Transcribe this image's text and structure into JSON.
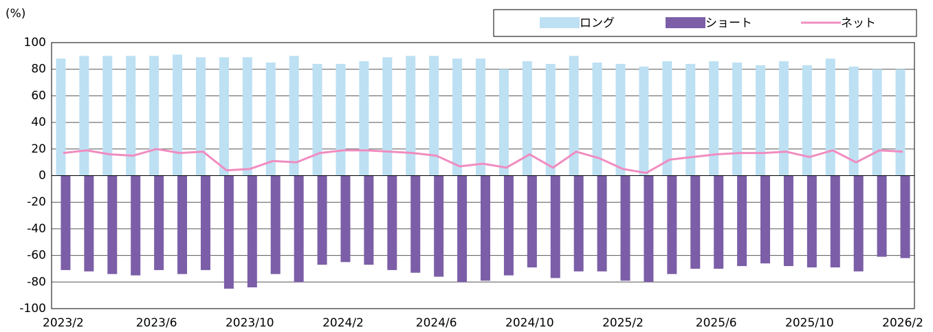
{
  "chart_data": {
    "type": "bar_line",
    "y_label": "(%)",
    "categories": [
      "2023/2",
      null,
      null,
      null,
      "2023/6",
      null,
      null,
      null,
      "2023/10",
      null,
      null,
      null,
      "2024/2",
      null,
      null,
      null,
      "2024/6",
      null,
      null,
      null,
      "2024/10",
      null,
      null,
      null,
      "2025/2",
      null,
      null,
      null,
      "2025/6",
      null,
      null,
      null,
      "2025/10",
      null,
      null,
      null,
      "2026/2"
    ],
    "series": [
      {
        "name": "ロング",
        "color": "#bde0f3",
        "kind": "bar",
        "values": [
          88,
          90,
          90,
          90,
          90,
          91,
          89,
          89,
          89,
          85,
          90,
          84,
          84,
          86,
          89,
          90,
          90,
          88,
          88,
          80,
          86,
          84,
          90,
          85,
          84,
          82,
          86,
          84,
          86,
          85,
          83,
          86,
          83,
          88,
          82,
          80,
          80
        ]
      },
      {
        "name": "ショート",
        "color": "#7b5ea7",
        "kind": "bar",
        "values": [
          -71,
          -72,
          -74,
          -75,
          -71,
          -74,
          -71,
          -85,
          -84,
          -74,
          -80,
          -67,
          -65,
          -67,
          -71,
          -73,
          -76,
          -80,
          -79,
          -75,
          -69,
          -77,
          -72,
          -72,
          -79,
          -80,
          -74,
          -70,
          -70,
          -68,
          -66,
          -68,
          -69,
          -69,
          -72,
          -61,
          -62
        ]
      },
      {
        "name": "ネット",
        "color": "#f08cc0",
        "kind": "line",
        "values": [
          17,
          19,
          16,
          15,
          20,
          17,
          18,
          4,
          5,
          11,
          10,
          17,
          19,
          19,
          18,
          17,
          15,
          7,
          9,
          6,
          16,
          6,
          18,
          13,
          5,
          2,
          12,
          14,
          16,
          17,
          17,
          18,
          14,
          19,
          10,
          19,
          18
        ]
      }
    ],
    "ylim": [
      -100,
      100
    ],
    "yticks": [
      -100,
      -80,
      -60,
      -40,
      -20,
      0,
      20,
      40,
      60,
      80,
      100
    ],
    "grid": true,
    "legend": "top-right"
  }
}
